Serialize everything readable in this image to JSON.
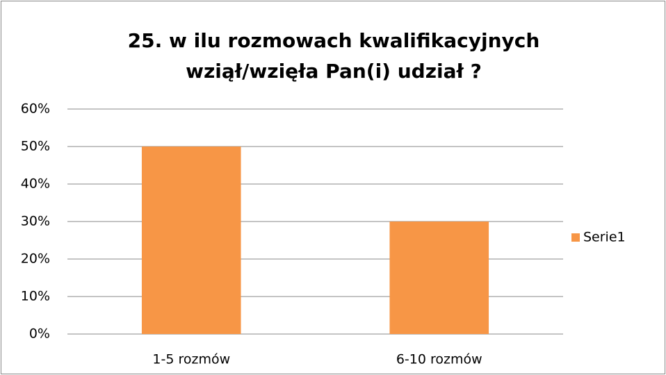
{
  "chart_data": {
    "type": "bar",
    "title": [
      "25. w ilu rozmowach kwalifikacyjnych",
      "wziął/wzięła Pan(i) udział ?"
    ],
    "categories": [
      "1-5 rozmów",
      "6-10 rozmów"
    ],
    "series": [
      {
        "name": "Serie1",
        "color": "#f79646",
        "values": [
          50,
          30
        ]
      }
    ],
    "ylim": [
      0,
      60
    ],
    "yticks": [
      {
        "value": 0,
        "label": "0%"
      },
      {
        "value": 10,
        "label": "10%"
      },
      {
        "value": 20,
        "label": "20%"
      },
      {
        "value": 30,
        "label": "30%"
      },
      {
        "value": 40,
        "label": "40%"
      },
      {
        "value": 50,
        "label": "50%"
      },
      {
        "value": 60,
        "label": "60%"
      }
    ],
    "grid": true,
    "legend": "right"
  }
}
